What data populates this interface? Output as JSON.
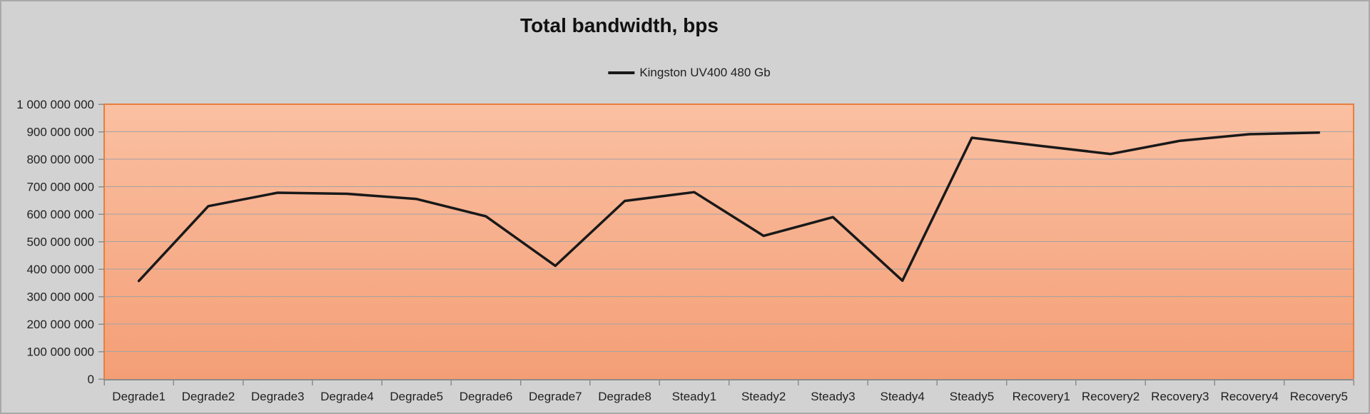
{
  "chart": {
    "title": "Total bandwidth, bps",
    "legend": {
      "label": "Kingston UV400 480 Gb"
    }
  },
  "chart_data": {
    "type": "line",
    "title": "Total bandwidth, bps",
    "categories": [
      "Degrade1",
      "Degrade2",
      "Degrade3",
      "Degrade4",
      "Degrade5",
      "Degrade6",
      "Degrade7",
      "Degrade8",
      "Steady1",
      "Steady2",
      "Steady3",
      "Steady4",
      "Steady5",
      "Recovery1",
      "Recovery2",
      "Recovery3",
      "Recovery4",
      "Recovery5"
    ],
    "series": [
      {
        "name": "Kingston UV400 480 Gb",
        "color": "#191919",
        "values": [
          357000000,
          629000000,
          678000000,
          674000000,
          655000000,
          592000000,
          412000000,
          648000000,
          680000000,
          521000000,
          589000000,
          358000000,
          878000000,
          848000000,
          819000000,
          867000000,
          891000000,
          897000000
        ]
      }
    ],
    "xlabel": "",
    "ylabel": "",
    "ylim": [
      0,
      1000000000
    ],
    "ytick_step": 100000000,
    "ytick_labels": [
      "0",
      "100 000 000",
      "200 000 000",
      "300 000 000",
      "400 000 000",
      "500 000 000",
      "600 000 000",
      "700 000 000",
      "800 000 000",
      "900 000 000",
      "1 000 000 000"
    ],
    "grid": true,
    "legend_position": "top-center"
  },
  "colors": {
    "background": "#d2d2d2",
    "frame_border": "#a9a9a9",
    "plot_fill_top": "#fac0a2",
    "plot_fill_bottom": "#f49e76",
    "plot_border": "#e87f3d",
    "gridline": "#a3a3a3",
    "axis": "#8c8c8c",
    "series": "#191919",
    "text": "#1f1f1f"
  }
}
